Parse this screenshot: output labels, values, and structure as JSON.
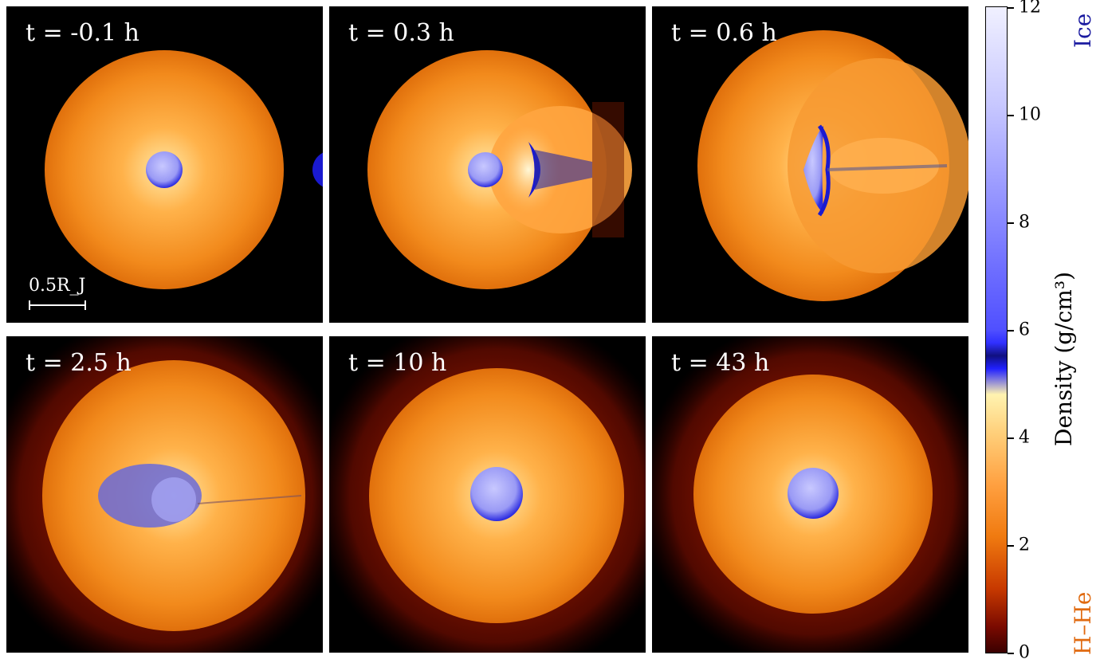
{
  "panels": [
    {
      "label": "t = -0.1 h"
    },
    {
      "label": "t = 0.3 h"
    },
    {
      "label": "t = 0.6 h"
    },
    {
      "label": "t = 2.5 h"
    },
    {
      "label": "t = 10 h"
    },
    {
      "label": "t = 43 h"
    }
  ],
  "scalebar": {
    "label": "0.5R_J"
  },
  "colorbar": {
    "title": "Density (g/cm³)",
    "ticks": [
      "0",
      "2",
      "4",
      "6",
      "8",
      "10",
      "12"
    ],
    "top_label": "Ice",
    "bottom_label": "H–He",
    "ice_color": "#1a1aa0",
    "hhe_color": "#e06a10"
  }
}
